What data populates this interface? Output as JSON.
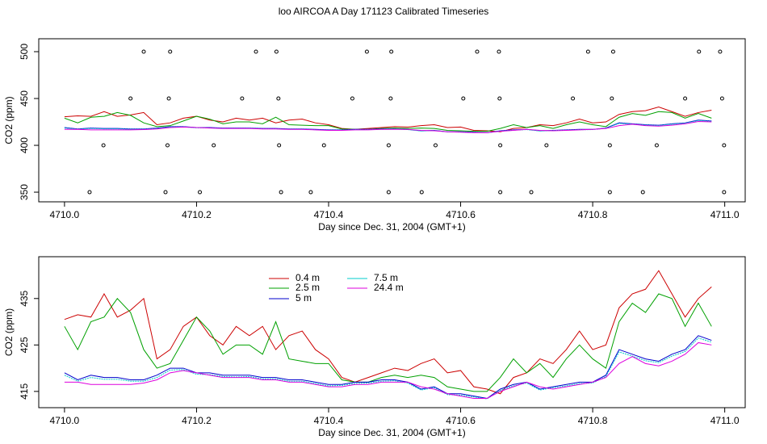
{
  "title": "loo AIRCOA A  Day 171123  Calibrated Timeseries",
  "chart_data": [
    {
      "type": "line",
      "ylabel": "CO2 (ppm)",
      "xlabel": "Day since Dec. 31, 2004 (GMT+1)",
      "xlim": [
        4709.961,
        4711.031
      ],
      "ylim": [
        339.7,
        513.8
      ],
      "xticks": [
        {
          "value": 4710,
          "label": "4710.0"
        },
        {
          "value": 4710.2,
          "label": "4710.2"
        },
        {
          "value": 4710.4,
          "label": "4710.4"
        },
        {
          "value": 4710.6,
          "label": "4710.6"
        },
        {
          "value": 4710.8,
          "label": "4710.8"
        },
        {
          "value": 4711,
          "label": "4711.0"
        }
      ],
      "yticks": [
        350,
        400,
        450,
        500
      ],
      "points": {
        "color": "#000000",
        "x": [
          4710.12,
          4710.16,
          4710.29,
          4710.321,
          4710.458,
          4710.495,
          4710.625,
          4710.658,
          4710.793,
          4710.831,
          4710.961,
          4710.993,
          4710.1,
          4710.158,
          4710.269,
          4710.324,
          4710.436,
          4710.494,
          4710.604,
          4710.659,
          4710.77,
          4710.829,
          4710.94,
          4710.996,
          4710.059,
          4710.156,
          4710.226,
          4710.325,
          4710.393,
          4710.491,
          4710.562,
          4710.66,
          4710.73,
          4710.826,
          4710.897,
          4710.999,
          4710.038,
          4710.153,
          4710.205,
          4710.328,
          4710.373,
          4710.491,
          4710.541,
          4710.66,
          4710.707,
          4710.826,
          4710.876,
          4710.999
        ],
        "y": [
          500,
          500,
          500,
          500,
          500,
          500,
          500,
          500,
          500,
          500,
          500,
          500,
          450,
          450,
          450,
          450,
          450,
          450,
          450,
          450,
          450,
          450,
          450,
          450,
          400,
          400,
          400,
          400,
          400,
          400,
          400,
          400,
          400,
          400,
          400,
          400,
          350,
          350,
          350,
          350,
          350,
          350,
          350,
          350,
          350,
          350,
          350,
          350
        ]
      }
    },
    {
      "type": "line",
      "ylabel": "CO2 (ppm)",
      "xlabel": "Day since Dec. 31, 2004 (GMT+1)",
      "xlim": [
        4709.961,
        4711.031
      ],
      "ylim": [
        411.5,
        444.0
      ],
      "xticks": [
        {
          "value": 4710,
          "label": "4710.0"
        },
        {
          "value": 4710.2,
          "label": "4710.2"
        },
        {
          "value": 4710.4,
          "label": "4710.4"
        },
        {
          "value": 4710.6,
          "label": "4710.6"
        },
        {
          "value": 4710.8,
          "label": "4710.8"
        },
        {
          "value": 4711,
          "label": "4711.0"
        }
      ],
      "yticks": [
        415,
        425,
        435
      ],
      "x": [
        4710,
        4710.02,
        4710.04,
        4710.06,
        4710.08,
        4710.1,
        4710.12,
        4710.14,
        4710.16,
        4710.18,
        4710.2,
        4710.22,
        4710.24,
        4710.26,
        4710.28,
        4710.3,
        4710.32,
        4710.34,
        4710.36,
        4710.38,
        4710.4,
        4710.42,
        4710.44,
        4710.46,
        4710.48,
        4710.5,
        4710.52,
        4710.54,
        4710.56,
        4710.58,
        4710.6,
        4710.62,
        4710.64,
        4710.66,
        4710.68,
        4710.7,
        4710.72,
        4710.74,
        4710.76,
        4710.78,
        4710.8,
        4710.82,
        4710.84,
        4710.86,
        4710.88,
        4710.9,
        4710.92,
        4710.94,
        4710.96,
        4710.98
      ],
      "series": [
        {
          "name": "0.4 m",
          "color": "#cc0000",
          "values": [
            430.5,
            431.5,
            431,
            436,
            431,
            432.5,
            435,
            422,
            424,
            429,
            431,
            427,
            425,
            429,
            427,
            429,
            424,
            427,
            428,
            424,
            422,
            418,
            417,
            418,
            419,
            420,
            419.5,
            421,
            422,
            419,
            419.5,
            416,
            415.5,
            414.5,
            418,
            419,
            422,
            421,
            424,
            428,
            424,
            425,
            433,
            436,
            437,
            441,
            436,
            431,
            435,
            437.5
          ]
        },
        {
          "name": "2.5 m",
          "color": "#00a000",
          "values": [
            429,
            424,
            430,
            431,
            435,
            432,
            424,
            420,
            421,
            426,
            431,
            428,
            423,
            425,
            425,
            423,
            430,
            422,
            421.5,
            421,
            421,
            417.5,
            417,
            417,
            418,
            418.5,
            418,
            418.5,
            418,
            416,
            415.5,
            415,
            415,
            418,
            422,
            419,
            421,
            418,
            422,
            425,
            422,
            420,
            430,
            434,
            432,
            436,
            435,
            429,
            434,
            429
          ]
        },
        {
          "name": "5 m",
          "color": "#0000cc",
          "values": [
            419,
            417.5,
            418.5,
            418,
            418,
            417.5,
            417.5,
            418.5,
            420,
            420,
            419,
            419,
            418.5,
            418.5,
            418.5,
            418,
            418,
            417.5,
            417.5,
            417,
            416.5,
            416.5,
            417,
            417,
            417.5,
            417.5,
            417,
            415.5,
            416,
            414.5,
            414.5,
            414,
            413.5,
            415.5,
            416.5,
            417,
            415.5,
            416,
            416.5,
            417,
            417,
            418.5,
            424,
            423,
            422,
            421.5,
            423,
            424,
            427,
            426
          ]
        },
        {
          "name": "7.5 m",
          "color": "#00cccc",
          "values": [
            418.5,
            417.2,
            418,
            417.6,
            417.6,
            417.2,
            417.2,
            418,
            419.6,
            419.7,
            418.7,
            418.6,
            418.2,
            418.1,
            418.2,
            417.7,
            417.7,
            417.2,
            417.2,
            416.7,
            416.2,
            416.3,
            416.7,
            416.8,
            417.2,
            417.3,
            416.8,
            415.3,
            415.8,
            414.3,
            414.2,
            413.8,
            413.4,
            415.2,
            416.2,
            416.8,
            415.3,
            415.8,
            416.2,
            416.7,
            416.8,
            418.2,
            423.5,
            422.6,
            421.6,
            421.2,
            422.6,
            423.6,
            426.5,
            425.6
          ]
        },
        {
          "name": "24.4 m",
          "color": "#dd00dd",
          "values": [
            417,
            417,
            416.5,
            416.5,
            416.5,
            416.5,
            416.8,
            417.5,
            419,
            419.5,
            419,
            418.5,
            418,
            418,
            418,
            417.5,
            417.5,
            417,
            417,
            416.5,
            416,
            416,
            416.5,
            416.5,
            417,
            417,
            417,
            416,
            415.5,
            414.5,
            414,
            413.5,
            413.5,
            415,
            416,
            417,
            416,
            415.5,
            416,
            416.5,
            417,
            418,
            421,
            422.5,
            421,
            420.5,
            421.5,
            423,
            425.5,
            425
          ]
        }
      ]
    }
  ]
}
